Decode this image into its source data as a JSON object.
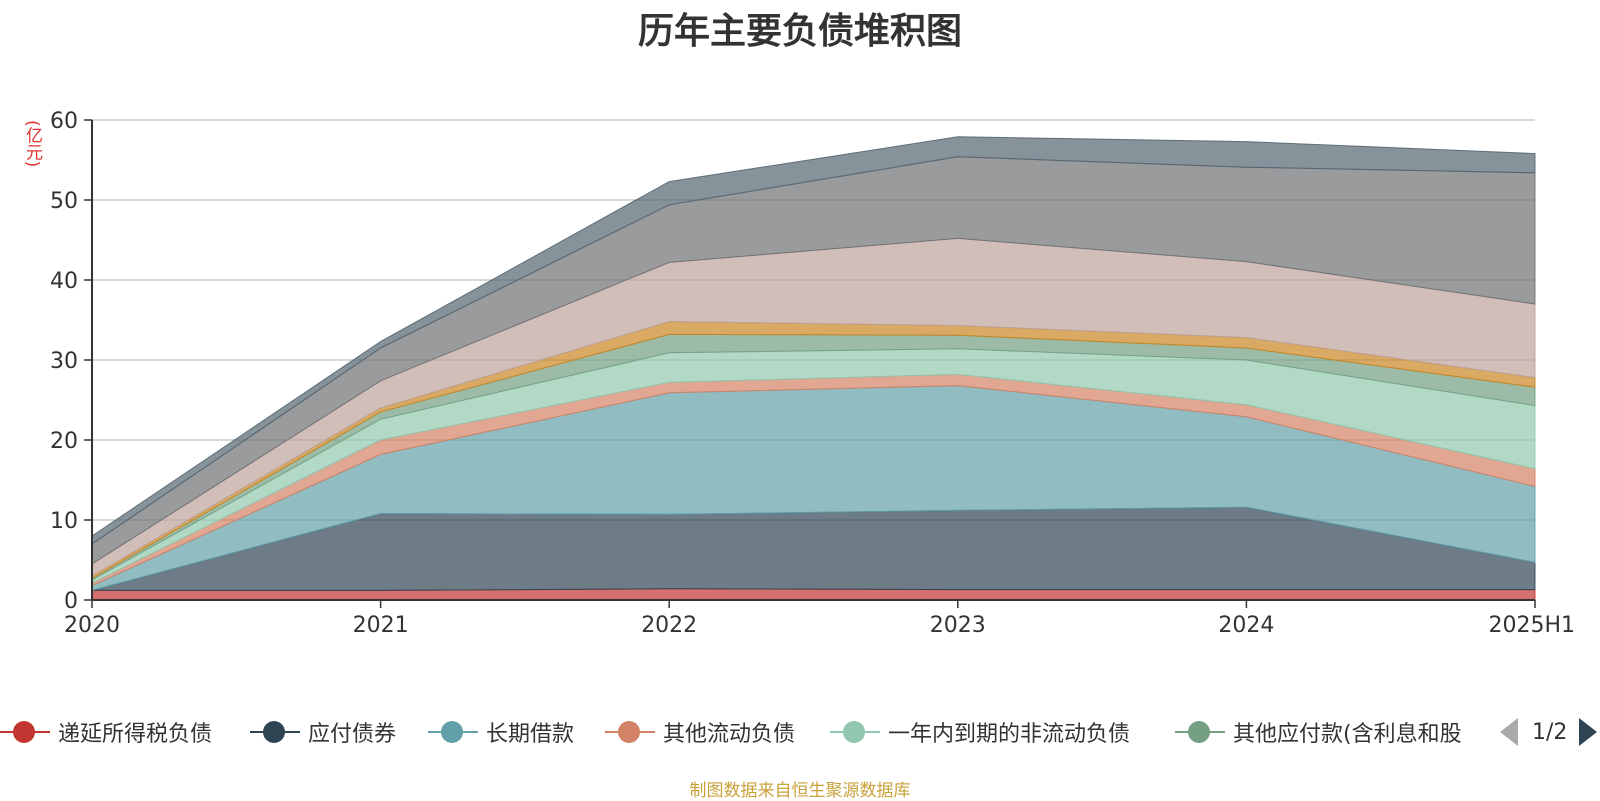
{
  "title": "历年主要负债堆积图",
  "unit_label": "(亿元)",
  "source_note": "制图数据来自恒生聚源数据库",
  "pager": {
    "text": "1/2"
  },
  "chart_data": {
    "type": "area",
    "stacked": true,
    "categories": [
      "2020",
      "2021",
      "2022",
      "2023",
      "2024",
      "2025H1"
    ],
    "ylim": [
      0,
      60
    ],
    "yticks": [
      0,
      10,
      20,
      30,
      40,
      50,
      60
    ],
    "grid": true,
    "legend_position": "bottom",
    "series": [
      {
        "name": "递延所得税负债",
        "color": "#c23531",
        "values": [
          1.2,
          1.2,
          1.4,
          1.3,
          1.3,
          1.3
        ]
      },
      {
        "name": "应付债券",
        "color": "#2f4554",
        "values": [
          0,
          9.6,
          9.3,
          9.9,
          10.3,
          3.4
        ]
      },
      {
        "name": "长期借款",
        "color": "#61a0a8",
        "values": [
          0.6,
          7.4,
          15.2,
          15.6,
          11.3,
          9.5
        ]
      },
      {
        "name": "其他流动负债",
        "color": "#d48265",
        "values": [
          0.3,
          1.8,
          1.3,
          1.4,
          1.5,
          2.2
        ]
      },
      {
        "name": "一年内到期的非流动负债",
        "color": "#91c7ae",
        "values": [
          0.4,
          2.6,
          3.7,
          3.2,
          5.6,
          7.9
        ]
      },
      {
        "name": "其他应付款(含利息和股",
        "color": "#749f83",
        "values": [
          0.2,
          0.9,
          2.3,
          1.7,
          1.5,
          2.3
        ]
      },
      {
        "name": "",
        "color": "#ca8622",
        "values": [
          0.3,
          0.5,
          1.6,
          1.2,
          1.3,
          1.2
        ]
      },
      {
        "name": "",
        "color": "#bda29a",
        "values": [
          1.5,
          3.4,
          7.4,
          10.9,
          9.5,
          9.2
        ]
      },
      {
        "name": "",
        "color": "#6e7074",
        "values": [
          2.5,
          4.1,
          7.2,
          10.2,
          11.8,
          16.4
        ]
      },
      {
        "name": "",
        "color": "#546570",
        "values": [
          1.0,
          0.8,
          2.9,
          2.5,
          3.2,
          2.4
        ]
      }
    ]
  }
}
